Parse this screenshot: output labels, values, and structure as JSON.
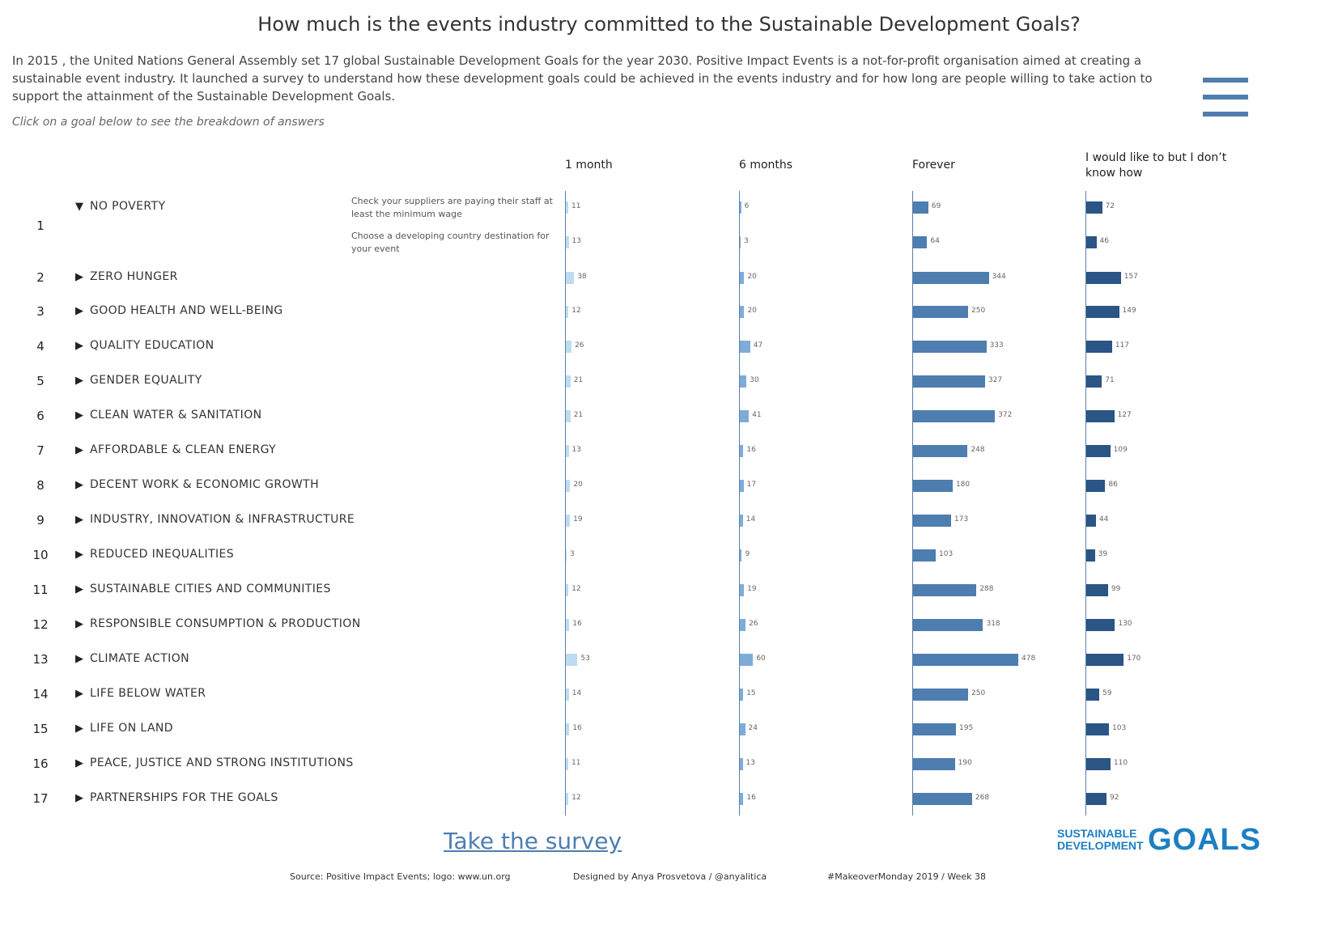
{
  "title": "How much is the events industry committed to the Sustainable Development Goals?",
  "intro": "In 2015 , the United Nations General Assembly set 17 global Sustainable Development Goals for the year 2030. Positive Impact Events is a not-for-profit organisation aimed at creating a sustainable event industry. It launched a survey to understand how these development goals could be achieved in the events industry and for how long are people willing to take action to support the attainment of the Sustainable Development Goals.",
  "hint": "Click on a goal below to see the breakdown of answers",
  "menu_icon": "hamburger-menu-icon",
  "survey_link": "Take the survey",
  "logo": {
    "line1": "SUSTAINABLE",
    "line2": "DEVELOPMENT",
    "big": "GOALS"
  },
  "footer": {
    "source": "Source: Positive Impact Events; logo: www.un.org",
    "designer": "Designed by Anya Prosvetova / @anyalitica",
    "tag": "#MakeoverMonday 2019 / Week 38"
  },
  "colors": {
    "1 month": "#bddcf0",
    "6 months": "#7eacd8",
    "Forever": "#4e7db0",
    "I would like to but I don't know how": "#2a5585"
  },
  "chart_data": {
    "type": "bar",
    "orientation": "horizontal",
    "columns": [
      "1 month",
      "6 months",
      "Forever",
      "I would like to but I don’t know how"
    ],
    "rows": [
      {
        "num": "1",
        "goal": "NO POVERTY",
        "expanded": true,
        "action": "Check your suppliers are paying their staff at least the minimum wage",
        "values": [
          11,
          6,
          69,
          72
        ]
      },
      {
        "num": "",
        "goal": "",
        "expanded": true,
        "action": "Choose a developing country destination for your event",
        "values": [
          13,
          3,
          64,
          46
        ]
      },
      {
        "num": "2",
        "goal": "ZERO HUNGER",
        "action": "",
        "values": [
          38,
          20,
          344,
          157
        ]
      },
      {
        "num": "3",
        "goal": "GOOD HEALTH AND WELL-BEING",
        "action": "",
        "values": [
          12,
          20,
          250,
          149
        ]
      },
      {
        "num": "4",
        "goal": "QUALITY EDUCATION",
        "action": "",
        "values": [
          26,
          47,
          333,
          117
        ]
      },
      {
        "num": "5",
        "goal": "GENDER EQUALITY",
        "action": "",
        "values": [
          21,
          30,
          327,
          71
        ]
      },
      {
        "num": "6",
        "goal": "CLEAN WATER & SANITATION",
        "action": "",
        "values": [
          21,
          41,
          372,
          127
        ]
      },
      {
        "num": "7",
        "goal": "AFFORDABLE & CLEAN ENERGY",
        "action": "",
        "values": [
          13,
          16,
          248,
          109
        ]
      },
      {
        "num": "8",
        "goal": "DECENT WORK & ECONOMIC GROWTH",
        "action": "",
        "values": [
          20,
          17,
          180,
          86
        ]
      },
      {
        "num": "9",
        "goal": "INDUSTRY, INNOVATION & INFRASTRUCTURE",
        "action": "",
        "values": [
          19,
          14,
          173,
          44
        ]
      },
      {
        "num": "10",
        "goal": "REDUCED INEQUALITIES",
        "action": "",
        "values": [
          3,
          9,
          103,
          39
        ]
      },
      {
        "num": "11",
        "goal": "SUSTAINABLE CITIES AND COMMUNITIES",
        "action": "",
        "values": [
          12,
          19,
          288,
          99
        ]
      },
      {
        "num": "12",
        "goal": "RESPONSIBLE CONSUMPTION & PRODUCTION",
        "action": "",
        "values": [
          16,
          26,
          318,
          130
        ]
      },
      {
        "num": "13",
        "goal": "CLIMATE ACTION",
        "action": "",
        "values": [
          53,
          60,
          478,
          170
        ]
      },
      {
        "num": "14",
        "goal": "LIFE BELOW WATER",
        "action": "",
        "values": [
          14,
          15,
          250,
          59
        ]
      },
      {
        "num": "15",
        "goal": "LIFE ON LAND",
        "action": "",
        "values": [
          16,
          24,
          195,
          103
        ]
      },
      {
        "num": "16",
        "goal": "PEACE, JUSTICE AND STRONG INSTITUTIONS",
        "action": "",
        "values": [
          11,
          13,
          190,
          110
        ]
      },
      {
        "num": "17",
        "goal": "PARTNERSHIPS FOR THE GOALS",
        "action": "",
        "values": [
          12,
          16,
          268,
          92
        ]
      }
    ]
  }
}
